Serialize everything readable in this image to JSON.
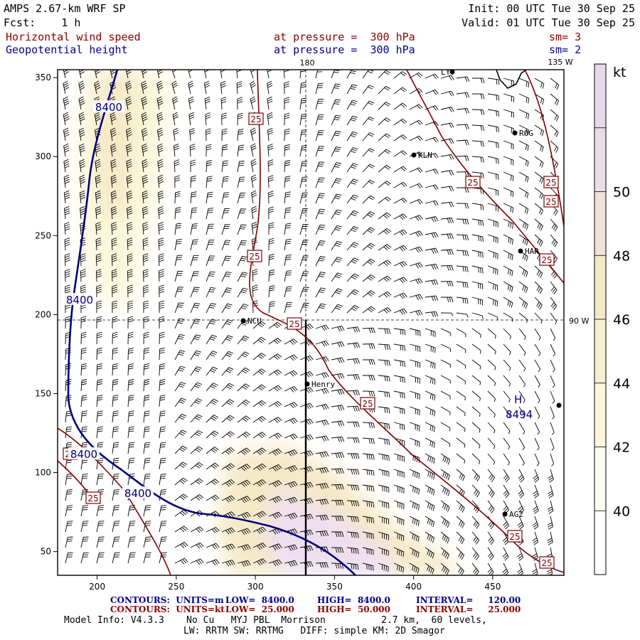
{
  "header": {
    "model": "AMPS 2.67-km WRF SP",
    "forecast": "Fcst:    1 h",
    "init": "Init: 00 UTC Tue 30 Sep 25",
    "valid": "Valid: 01 UTC Tue 30 Sep 25",
    "field1": "Horizontal wind speed",
    "field1_level": "at pressure =  300 hPa",
    "field1_sm": "sm= 3",
    "field2": "Geopotential height",
    "field2_level": "at pressure =  300 hPa",
    "field2_sm": "sm= 2"
  },
  "map": {
    "x_ticks": [
      "200",
      "250",
      "300",
      "350",
      "400",
      "450"
    ],
    "y_ticks": [
      "50",
      "100",
      "150",
      "200",
      "250",
      "300",
      "350"
    ],
    "meridian_180": "180",
    "meridian_135w": "135 W",
    "meridian_90w": "90 W",
    "stations": [
      "LYT",
      "ROG",
      "KLN",
      "HAR",
      "NCU",
      "Henry",
      "AG2"
    ],
    "height_label": "8400",
    "speed_label": "25",
    "high_symbol": "H",
    "high_value": "8494",
    "colors": {
      "fill_low": "#fcf7dc",
      "fill_mid": "#f5e9c8",
      "fill_high": "#eedff0",
      "height_line": "#00007b",
      "speed_line": "#800000"
    }
  },
  "colorbar": {
    "unit": "kt",
    "labels": [
      "40",
      "42",
      "44",
      "46",
      "48",
      "50"
    ],
    "bands": [
      "#ffffff",
      "#fefef0",
      "#fcf7dc",
      "#f8efd0",
      "#f5e9c8",
      "#f0e2d8",
      "#ebdde8",
      "#e8d8ec"
    ]
  },
  "footer": {
    "row1_label": "CONTOURS:  UNITS=m",
    "row1_low": "LOW=  8400.0",
    "row1_high": "HIGH=  8400.0",
    "row1_interval": "INTERVAL=     120.00",
    "row2_label": "CONTOURS:  UNITS=kt",
    "row2_low": "LOW=  25.000",
    "row2_high": "HIGH=  50.000",
    "row2_interval": "INTERVAL=     25.000",
    "model_info": "Model Info: V4.3.3    No Cu   MYJ PBL  Morrison          2.7 km,  60 levels,",
    "physics": "LW: RRTM SW: RRTMG   DIFF: simple KM: 2D Smagor"
  }
}
